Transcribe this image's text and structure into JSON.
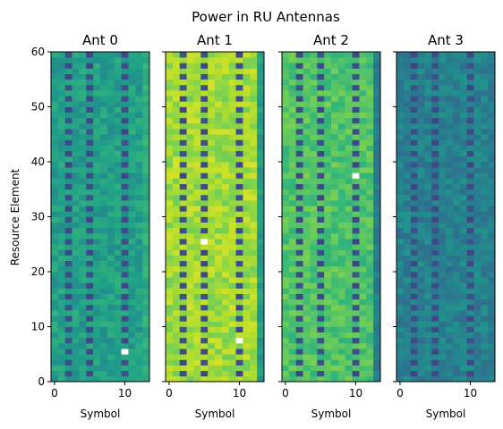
{
  "chart_data": {
    "type": "heatmap",
    "title": "Power in RU Antennas",
    "shared_ylabel": "Resource Element",
    "colormap": "viridis",
    "xlim": [
      -0.5,
      13.5
    ],
    "ylim": [
      0,
      60
    ],
    "xticks": [
      0,
      10
    ],
    "yticks": [
      0,
      10,
      20,
      30,
      40,
      50,
      60
    ],
    "n_symbols": 14,
    "n_resource_elements": 60,
    "dark_symbol_columns": [
      2,
      5,
      10
    ],
    "white_cells": [
      {
        "panel": 0,
        "symbol": 10,
        "resource_element": 5
      },
      {
        "panel": 1,
        "symbol": 5,
        "resource_element": 25
      },
      {
        "panel": 1,
        "symbol": 10,
        "resource_element": 7
      },
      {
        "panel": 2,
        "symbol": 10,
        "resource_element": 37
      }
    ],
    "panels": [
      {
        "title": "Ant 0",
        "xlabel": "Symbol",
        "ylabel": "Resource Element",
        "show_ytick_labels": true,
        "level": 0.56,
        "edge_level": 0.62
      },
      {
        "title": "Ant 1",
        "xlabel": "Symbol",
        "ylabel": "",
        "show_ytick_labels": false,
        "level": 0.86,
        "edge_level": 0.55
      },
      {
        "title": "Ant 2",
        "xlabel": "Symbol",
        "ylabel": "",
        "show_ytick_labels": false,
        "level": 0.72,
        "edge_level": 0.42
      },
      {
        "title": "Ant 3",
        "xlabel": "Symbol",
        "ylabel": "",
        "show_ytick_labels": false,
        "level": 0.44,
        "edge_level": 0.42
      }
    ]
  }
}
